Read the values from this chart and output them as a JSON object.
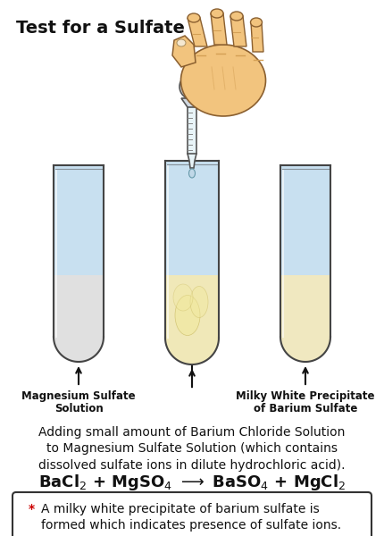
{
  "title": "Test for a Sulfate",
  "title_fontsize": 14,
  "title_fontweight": "bold",
  "background_color": "#ffffff",
  "tube1_label1": "Magnesium Sulfate",
  "tube1_label2": "Solution",
  "tube3_label1": "Milky White Precipitate",
  "tube3_label2": "of Barium Sulfate",
  "tube1_liquid_color": "#e0e0e0",
  "tube1_upper_color": "#c8e0f0",
  "tube2_liquid_color": "#f0e8b8",
  "tube2_upper_color": "#c8e0f0",
  "tube3_liquid_color": "#f0e8c0",
  "tube3_upper_color": "#c8e0f0",
  "tube_outline": "#444444",
  "description_line1": "Adding small amount of Barium Chloride Solution",
  "description_line2": "to Magnesium Sulfate Solution (which contains",
  "description_line3": "dissolved sulfate ions in dilute hydrochloric acid).",
  "description_fontsize": 10,
  "equation_fontsize": 13,
  "equation_fontweight": "bold",
  "note_star_color": "#cc0000",
  "note_fontsize": 10,
  "hand_fill": "#f2c47e",
  "hand_outline": "#8B6030",
  "hand_shadow": "#d4a055",
  "arrow_color": "#111111"
}
